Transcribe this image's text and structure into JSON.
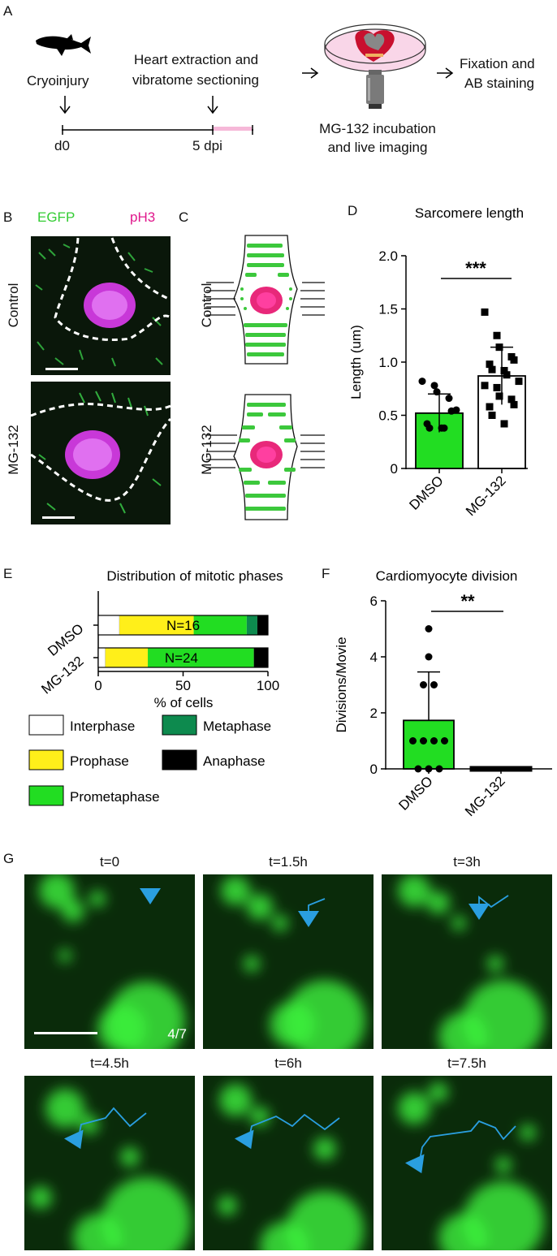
{
  "panel_letters": {
    "a": "A",
    "b": "B",
    "c": "C",
    "d": "D",
    "e": "E",
    "f": "F",
    "g": "G"
  },
  "panel_a": {
    "step1": "Cryoinjury",
    "step2_line1": "Heart extraction and",
    "step2_line2": "vibratome sectioning",
    "step3_line1": "MG-132 incubation",
    "step3_line2": "and live imaging",
    "step4_line1": "Fixation and",
    "step4_line2": "AB staining",
    "day0": "d0",
    "day5": "5 dpi"
  },
  "panel_b": {
    "channel_green": "EGFP",
    "channel_magenta": "pH3",
    "row_top": "Control",
    "row_bottom": "MG-132"
  },
  "panel_c": {
    "row_top": "Control",
    "row_bottom": "MG-132"
  },
  "colors": {
    "green": "#22dd22",
    "magenta": "#e0188c",
    "dark_green": "#0d8a4e",
    "yellow": "#ffef1a",
    "blue_track": "#2a9fe0",
    "black": "#000000"
  },
  "chart_data": [
    {
      "panel": "D",
      "type": "bar",
      "title": "Sarcomere length",
      "ylabel": "Length (um)",
      "xlabel": "",
      "categories": [
        "DMSO",
        "MG-132"
      ],
      "values": [
        0.52,
        0.87
      ],
      "errors": [
        0.18,
        0.27
      ],
      "points": [
        [
          0.82,
          0.78,
          0.72,
          0.66,
          0.54,
          0.42,
          0.38,
          0.38,
          0.38,
          0.55
        ],
        [
          1.47,
          1.25,
          1.14,
          1.05,
          1.02,
          0.98,
          0.93,
          0.92,
          0.88,
          0.82,
          0.78,
          0.76,
          0.68,
          0.65,
          0.6,
          0.58,
          0.5,
          0.42
        ]
      ],
      "yticks": [
        "0",
        "0.5",
        "1.0",
        "1.5",
        "2.0"
      ],
      "ylim": [
        0,
        2.0
      ],
      "significance": "***",
      "bar_colors": [
        "#22dd22",
        "#ffffff"
      ]
    },
    {
      "panel": "E",
      "type": "bar",
      "orientation": "horizontal-stacked",
      "title": "Distribution of mitotic phases",
      "xlabel": "% of cells",
      "categories": [
        "DMSO",
        "MG-132"
      ],
      "n_labels": [
        "N=16",
        "N=24"
      ],
      "series": [
        {
          "name": "Interphase",
          "color": "#ffffff",
          "values": [
            12.5,
            4.2
          ]
        },
        {
          "name": "Prophase",
          "color": "#ffef1a",
          "values": [
            43.75,
            25
          ]
        },
        {
          "name": "Prometaphase",
          "color": "#22dd22",
          "values": [
            31.25,
            62.5
          ]
        },
        {
          "name": "Metaphase",
          "color": "#0d8a4e",
          "values": [
            6.25,
            0
          ]
        },
        {
          "name": "Anaphase",
          "color": "#000000",
          "values": [
            6.25,
            8.3
          ]
        }
      ],
      "xticks": [
        "0",
        "50",
        "100"
      ],
      "xlim": [
        0,
        100
      ]
    },
    {
      "panel": "F",
      "type": "bar",
      "title": "Cardiomyocyte division",
      "ylabel": "Divisions/Movie",
      "xlabel": "",
      "categories": [
        "DMSO",
        "MG-132"
      ],
      "values": [
        1.73,
        0
      ],
      "errors": [
        1.73,
        0
      ],
      "points": [
        [
          5,
          4,
          3,
          3,
          1,
          1,
          1,
          1,
          0,
          0,
          0
        ],
        [
          0,
          0,
          0,
          0,
          0,
          0,
          0,
          0,
          0,
          0,
          0
        ]
      ],
      "yticks": [
        "0",
        "2",
        "4",
        "6"
      ],
      "ylim": [
        0,
        6
      ],
      "significance": "**",
      "bar_colors": [
        "#22dd22",
        "#ffffff"
      ]
    }
  ],
  "panel_g": {
    "frames": [
      "t=0",
      "t=1.5h",
      "t=3h",
      "t=4.5h",
      "t=6h",
      "t=7.5h"
    ],
    "count_label": "4/7"
  }
}
